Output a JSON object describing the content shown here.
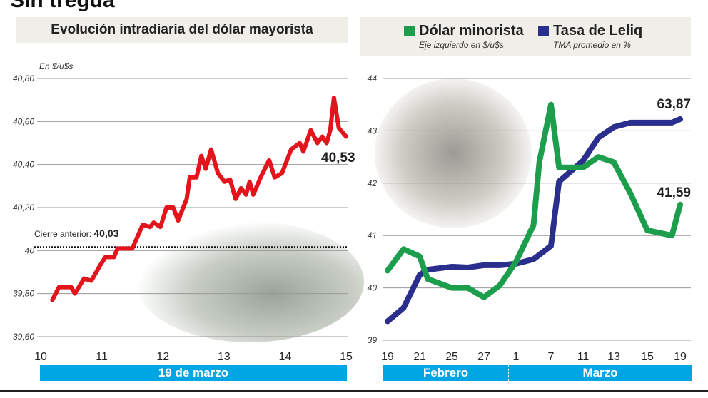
{
  "header": {
    "title": "Sin tregua"
  },
  "colors": {
    "red": "#e3141b",
    "green": "#1c9e4c",
    "blue": "#2a2f8e",
    "band": "#00a6e4"
  },
  "chart_data": [
    {
      "type": "line",
      "title": "Evolución intradiaria del dólar mayorista",
      "ylabel": "En $/u$s",
      "ylim": [
        39.6,
        40.8
      ],
      "yticks": [
        "40,80",
        "40,60",
        "40,40",
        "40,20",
        "40",
        "39,80",
        "39,60"
      ],
      "ytick_values": [
        40.8,
        40.6,
        40.4,
        40.2,
        40.0,
        39.8,
        39.6
      ],
      "xticks": [
        "10",
        "11",
        "12",
        "13",
        "14",
        "15"
      ],
      "xlim": [
        10,
        15
      ],
      "xband": "19 de marzo",
      "reference": {
        "label": "Cierre anterior:",
        "value_label": "40,03",
        "value": 40.03
      },
      "last_label": "40,53",
      "grid": true,
      "series": [
        {
          "color": "#e3141b",
          "x": [
            10.19,
            10.3,
            10.5,
            10.56,
            10.71,
            10.83,
            10.97,
            11.06,
            11.2,
            11.26,
            11.5,
            11.67,
            11.79,
            11.85,
            11.96,
            12.06,
            12.17,
            12.25,
            12.39,
            12.44,
            12.55,
            12.63,
            12.7,
            12.79,
            12.9,
            13.01,
            13.1,
            13.19,
            13.28,
            13.36,
            13.42,
            13.48,
            13.6,
            13.74,
            13.83,
            13.95,
            14.1,
            14.24,
            14.3,
            14.42,
            14.53,
            14.61,
            14.68,
            14.74,
            14.8,
            14.88,
            15.0
          ],
          "y": [
            39.77,
            39.83,
            39.83,
            39.8,
            39.87,
            39.86,
            39.93,
            39.97,
            39.97,
            40.01,
            40.01,
            40.12,
            40.11,
            40.13,
            40.11,
            40.2,
            40.2,
            40.14,
            40.24,
            40.34,
            40.34,
            40.44,
            40.38,
            40.47,
            40.36,
            40.32,
            40.33,
            40.24,
            40.29,
            40.26,
            40.32,
            40.26,
            40.34,
            40.42,
            40.34,
            40.36,
            40.47,
            40.5,
            40.46,
            40.56,
            40.5,
            40.53,
            40.5,
            40.56,
            40.71,
            40.57,
            40.53
          ]
        }
      ]
    },
    {
      "type": "line",
      "ylim": [
        39,
        44
      ],
      "yticks": [
        "44",
        "43",
        "42",
        "41",
        "40",
        "39"
      ],
      "ytick_values": [
        44,
        43,
        42,
        41,
        40,
        39
      ],
      "xticks": [
        "19",
        "21",
        "25",
        "27",
        "1",
        "7",
        "11",
        "13",
        "15",
        "19"
      ],
      "xtick_dates": [
        "19-02",
        "21-02",
        "25-02",
        "27-02",
        "01-03",
        "07-03",
        "11-03",
        "13-03",
        "15-03",
        "19-03"
      ],
      "xbands": [
        "Febrero",
        "Marzo"
      ],
      "grid": true,
      "series": [
        {
          "name": "Dólar minorista",
          "subtitle": "Eje izquierdo en $/u$s",
          "color": "#1c9e4c",
          "axis": "left",
          "last_label": "41,59",
          "x": [
            "19-02",
            "20-02",
            "21-02",
            "22-02",
            "25-02",
            "26-02",
            "27-02",
            "28-02",
            "01-03",
            "04-03",
            "05-03",
            "07-03",
            "08-03",
            "11-03",
            "12-03",
            "13-03",
            "14-03",
            "15-03",
            "18-03",
            "19-03"
          ],
          "y": [
            40.33,
            40.74,
            40.6,
            40.17,
            40.0,
            40.0,
            39.82,
            40.05,
            40.5,
            41.2,
            42.4,
            43.5,
            42.3,
            42.3,
            42.5,
            42.4,
            41.8,
            41.1,
            41.0,
            41.59
          ]
        },
        {
          "name": "Tasa de Leliq",
          "subtitle": "TMA promedio en %",
          "color": "#2a2f8e",
          "axis": "right",
          "last_label": "63,87",
          "x": [
            "19-02",
            "20-02",
            "21-02",
            "22-02",
            "25-02",
            "26-02",
            "27-02",
            "28-02",
            "01-03",
            "04-03",
            "07-03",
            "08-03",
            "11-03",
            "12-03",
            "13-03",
            "14-03",
            "15-03",
            "18-03",
            "19-03"
          ],
          "y": [
            36.8,
            38.6,
            43.0,
            43.7,
            44.1,
            44.0,
            44.3,
            44.3,
            44.5,
            45.1,
            46.9,
            55.5,
            58.3,
            61.4,
            62.8,
            63.4,
            63.4,
            63.4,
            63.87
          ]
        }
      ]
    }
  ]
}
